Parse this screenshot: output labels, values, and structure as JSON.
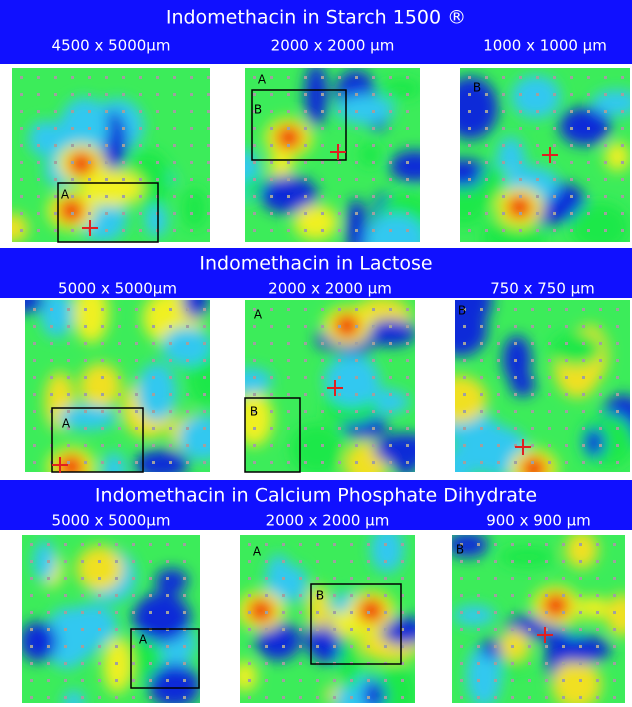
{
  "sections": [
    {
      "title": "Indomethacin in Starch 1500 ®",
      "images": [
        {
          "scale": "4500 x 5000µm",
          "letters": [
            "A"
          ]
        },
        {
          "scale": "2000 x 2000 µm",
          "letters": [
            "A",
            "B"
          ]
        },
        {
          "scale": "1000 x 1000 µm",
          "letters": [
            "B"
          ]
        }
      ]
    },
    {
      "title": "Indomethacin in Lactose",
      "images": [
        {
          "scale": "5000 x 5000µm",
          "letters": [
            "A"
          ]
        },
        {
          "scale": "2000 x 2000 µm",
          "letters": [
            "A",
            "B"
          ]
        },
        {
          "scale": "750 x 750 µm",
          "letters": [
            "B"
          ]
        }
      ]
    },
    {
      "title": "Indomethacin in Calcium Phosphate Dihydrate",
      "images": [
        {
          "scale": "5000 x 5000µm",
          "letters": [
            "A"
          ]
        },
        {
          "scale": "2000 x 2000 µm",
          "letters": [
            "A",
            "B"
          ]
        },
        {
          "scale": "900 x 900 µm",
          "letters": [
            "B"
          ]
        }
      ]
    }
  ]
}
